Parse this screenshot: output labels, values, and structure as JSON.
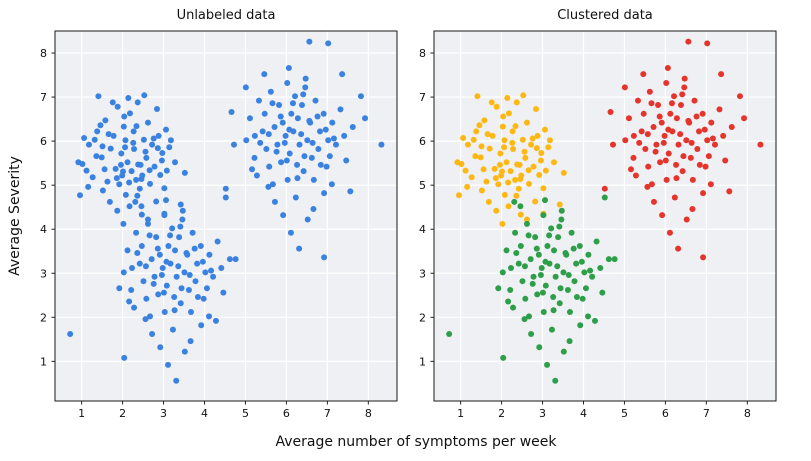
{
  "chart_data": {
    "type": "scatter",
    "panels": [
      {
        "title": "Unlabeled data",
        "mode": "single"
      },
      {
        "title": "Clustered data",
        "mode": "cluster"
      }
    ],
    "xlabel": "Average number of symptoms per week",
    "ylabel": "Average Severity",
    "xticks": [
      1,
      2,
      3,
      4,
      5,
      6,
      7,
      8
    ],
    "yticks": [
      1,
      2,
      3,
      4,
      5,
      6,
      7,
      8
    ],
    "xlim": [
      0.35,
      8.7
    ],
    "ylim": [
      0.1,
      8.5
    ],
    "grid": true,
    "legend": "none",
    "marker_radius": 3,
    "unlabeled_color": "#3b82e0",
    "plot_bg": "#eef0f4",
    "grid_color": "#ffffff",
    "spine_color": "#1a1a1a",
    "clusters": [
      {
        "name": "cluster-yellow",
        "color": "#fdb813",
        "points": [
          [
            1.02,
            5.48
          ],
          [
            1.18,
            5.92
          ],
          [
            1.27,
            5.18
          ],
          [
            1.38,
            6.22
          ],
          [
            1.52,
            4.88
          ],
          [
            1.49,
            5.63
          ],
          [
            1.58,
            6.47
          ],
          [
            1.63,
            5.08
          ],
          [
            1.71,
            5.83
          ],
          [
            1.69,
            4.62
          ],
          [
            1.78,
            6.12
          ],
          [
            1.83,
            5.37
          ],
          [
            1.88,
            6.78
          ],
          [
            1.92,
            5.02
          ],
          [
            1.87,
            4.42
          ],
          [
            1.97,
            5.72
          ],
          [
            2.03,
            6.33
          ],
          [
            1.99,
            5.22
          ],
          [
            2.08,
            4.78
          ],
          [
            2.12,
            5.52
          ],
          [
            2.07,
            6.02
          ],
          [
            2.18,
            6.63
          ],
          [
            2.22,
            5.32
          ],
          [
            2.17,
            4.52
          ],
          [
            2.28,
            5.82
          ],
          [
            2.33,
            5.12
          ],
          [
            2.27,
            6.22
          ],
          [
            2.38,
            5.47
          ],
          [
            2.42,
            4.92
          ],
          [
            2.37,
            6.88
          ],
          [
            2.48,
            5.22
          ],
          [
            2.52,
            6.03
          ],
          [
            2.47,
            4.33
          ],
          [
            2.58,
            5.62
          ],
          [
            2.62,
            6.42
          ],
          [
            2.67,
            5.03
          ],
          [
            2.72,
            5.92
          ],
          [
            2.78,
            5.42
          ],
          [
            2.82,
            4.63
          ],
          [
            2.88,
            6.12
          ],
          [
            2.92,
            5.23
          ],
          [
            2.97,
            5.73
          ],
          [
            3.02,
            4.93
          ],
          [
            3.08,
            5.33
          ],
          [
            3.18,
            6.02
          ],
          [
            3.28,
            5.52
          ],
          [
            3.52,
            5.28
          ],
          [
            1.12,
            5.33
          ],
          [
            0.92,
            5.52
          ],
          [
            1.32,
            6.03
          ],
          [
            2.02,
            4.12
          ],
          [
            2.62,
            4.22
          ],
          [
            3.02,
            4.35
          ],
          [
            2.14,
            6.98
          ],
          [
            1.76,
            6.88
          ],
          [
            2.44,
            5.46
          ],
          [
            2.06,
            5.86
          ],
          [
            1.56,
            5.36
          ],
          [
            2.36,
            4.76
          ],
          [
            2.84,
            6.73
          ],
          [
            1.16,
            4.96
          ],
          [
            1.36,
            5.66
          ],
          [
            1.46,
            6.36
          ],
          [
            1.66,
            6.16
          ],
          [
            1.86,
            5.16
          ],
          [
            1.96,
            5.46
          ],
          [
            2.04,
            6.56
          ],
          [
            2.16,
            5.06
          ],
          [
            2.26,
            5.96
          ],
          [
            2.34,
            6.34
          ],
          [
            2.46,
            5.14
          ],
          [
            2.56,
            5.76
          ],
          [
            2.66,
            5.34
          ],
          [
            2.76,
            6.06
          ],
          [
            2.86,
            5.84
          ],
          [
            2.96,
            5.56
          ],
          [
            3.06,
            6.26
          ],
          [
            3.14,
            5.86
          ],
          [
            2.01,
            5.31
          ],
          [
            1.51,
            5.88
          ],
          [
            0.96,
            4.77
          ],
          [
            1.06,
            6.07
          ],
          [
            3.42,
            4.56
          ],
          [
            1.41,
            7.02
          ],
          [
            2.53,
            7.04
          ]
        ]
      },
      {
        "name": "cluster-green",
        "color": "#2e9e49",
        "points": [
          [
            2.03,
            3.02
          ],
          [
            2.12,
            3.52
          ],
          [
            2.21,
            2.62
          ],
          [
            2.33,
            3.92
          ],
          [
            2.28,
            2.22
          ],
          [
            2.42,
            3.22
          ],
          [
            2.51,
            2.82
          ],
          [
            2.47,
            3.62
          ],
          [
            2.62,
            4.12
          ],
          [
            2.58,
            2.42
          ],
          [
            2.71,
            3.32
          ],
          [
            2.67,
            2.02
          ],
          [
            2.82,
            3.82
          ],
          [
            2.78,
            2.92
          ],
          [
            2.91,
            3.42
          ],
          [
            2.87,
            2.52
          ],
          [
            3.02,
            4.32
          ],
          [
            2.98,
            3.12
          ],
          [
            3.03,
            2.12
          ],
          [
            3.12,
            3.62
          ],
          [
            3.08,
            2.72
          ],
          [
            3.21,
            4.02
          ],
          [
            3.17,
            3.22
          ],
          [
            3.23,
            1.72
          ],
          [
            3.32,
            2.92
          ],
          [
            3.28,
            3.52
          ],
          [
            3.42,
            2.32
          ],
          [
            3.38,
            3.82
          ],
          [
            3.51,
            3.02
          ],
          [
            3.47,
            4.42
          ],
          [
            3.62,
            2.62
          ],
          [
            3.58,
            3.42
          ],
          [
            3.71,
            3.92
          ],
          [
            3.67,
            2.12
          ],
          [
            3.82,
            3.22
          ],
          [
            3.78,
            2.82
          ],
          [
            3.91,
            3.62
          ],
          [
            4.02,
            3.02
          ],
          [
            3.98,
            2.42
          ],
          [
            4.12,
            3.42
          ],
          [
            4.21,
            2.92
          ],
          [
            4.32,
            3.72
          ],
          [
            4.41,
            3.12
          ],
          [
            4.62,
            3.32
          ],
          [
            2.23,
            3.12
          ],
          [
            2.46,
            4.52
          ],
          [
            2.92,
            1.32
          ],
          [
            3.11,
            0.92
          ],
          [
            3.31,
            0.56
          ],
          [
            3.52,
            1.22
          ],
          [
            2.72,
            1.62
          ],
          [
            3.92,
            1.82
          ],
          [
            4.11,
            2.02
          ],
          [
            3.06,
            4.66
          ],
          [
            3.46,
            4.22
          ],
          [
            2.16,
            2.36
          ],
          [
            4.46,
            2.56
          ],
          [
            3.66,
            1.46
          ],
          [
            2.56,
            1.96
          ],
          [
            3.26,
            2.46
          ],
          [
            2.36,
            3.46
          ],
          [
            2.57,
            3.16
          ],
          [
            2.76,
            2.76
          ],
          [
            2.86,
            3.56
          ],
          [
            2.96,
            2.96
          ],
          [
            3.07,
            3.26
          ],
          [
            3.16,
            3.86
          ],
          [
            3.27,
            2.16
          ],
          [
            3.36,
            3.16
          ],
          [
            3.44,
            2.66
          ],
          [
            3.56,
            3.46
          ],
          [
            3.64,
            2.96
          ],
          [
            3.76,
            3.56
          ],
          [
            3.84,
            2.46
          ],
          [
            3.96,
            3.26
          ],
          [
            4.06,
            2.66
          ],
          [
            4.16,
            3.06
          ],
          [
            2.66,
            3.86
          ],
          [
            3.01,
            2.56
          ],
          [
            3.41,
            4.06
          ],
          [
            0.72,
            1.62
          ],
          [
            4.76,
            3.32
          ],
          [
            2.04,
            1.08
          ],
          [
            4.28,
            1.92
          ],
          [
            2.31,
            4.62
          ],
          [
            1.92,
            2.66
          ],
          [
            4.52,
            4.72
          ]
        ]
      },
      {
        "name": "cluster-red",
        "color": "#e5342b",
        "points": [
          [
            5.02,
            6.02
          ],
          [
            5.11,
            6.52
          ],
          [
            5.22,
            5.62
          ],
          [
            5.33,
            6.92
          ],
          [
            5.28,
            5.22
          ],
          [
            5.42,
            6.22
          ],
          [
            5.51,
            5.82
          ],
          [
            5.47,
            6.62
          ],
          [
            5.62,
            7.12
          ],
          [
            5.58,
            5.42
          ],
          [
            5.71,
            6.32
          ],
          [
            5.67,
            5.02
          ],
          [
            5.82,
            6.82
          ],
          [
            5.78,
            5.92
          ],
          [
            5.91,
            6.42
          ],
          [
            5.87,
            5.52
          ],
          [
            6.02,
            7.32
          ],
          [
            5.98,
            6.12
          ],
          [
            6.03,
            5.12
          ],
          [
            6.12,
            6.62
          ],
          [
            6.08,
            5.72
          ],
          [
            6.21,
            7.02
          ],
          [
            6.17,
            6.22
          ],
          [
            6.23,
            4.72
          ],
          [
            6.32,
            5.92
          ],
          [
            6.28,
            6.52
          ],
          [
            6.42,
            5.32
          ],
          [
            6.38,
            6.82
          ],
          [
            6.51,
            6.02
          ],
          [
            6.47,
            7.42
          ],
          [
            6.62,
            5.62
          ],
          [
            6.58,
            6.42
          ],
          [
            6.71,
            6.92
          ],
          [
            6.67,
            5.12
          ],
          [
            6.82,
            6.22
          ],
          [
            6.78,
            5.82
          ],
          [
            6.91,
            6.62
          ],
          [
            7.02,
            6.02
          ],
          [
            6.98,
            5.42
          ],
          [
            7.12,
            6.42
          ],
          [
            7.21,
            5.92
          ],
          [
            7.32,
            6.72
          ],
          [
            7.41,
            6.12
          ],
          [
            7.62,
            6.32
          ],
          [
            5.23,
            6.12
          ],
          [
            5.46,
            7.52
          ],
          [
            5.92,
            4.32
          ],
          [
            6.11,
            3.92
          ],
          [
            6.31,
            3.56
          ],
          [
            6.52,
            4.22
          ],
          [
            5.72,
            4.62
          ],
          [
            6.92,
            4.82
          ],
          [
            7.11,
            5.02
          ],
          [
            6.06,
            7.66
          ],
          [
            6.46,
            7.22
          ],
          [
            5.16,
            5.36
          ],
          [
            7.46,
            5.56
          ],
          [
            6.66,
            4.46
          ],
          [
            5.56,
            4.96
          ],
          [
            6.26,
            5.46
          ],
          [
            5.36,
            5.96
          ],
          [
            5.57,
            6.16
          ],
          [
            5.76,
            5.76
          ],
          [
            5.86,
            6.56
          ],
          [
            5.96,
            5.96
          ],
          [
            6.07,
            6.26
          ],
          [
            6.16,
            6.86
          ],
          [
            6.27,
            5.16
          ],
          [
            6.36,
            6.16
          ],
          [
            6.44,
            5.66
          ],
          [
            6.56,
            6.46
          ],
          [
            6.64,
            5.96
          ],
          [
            6.76,
            6.56
          ],
          [
            6.84,
            5.46
          ],
          [
            6.96,
            6.26
          ],
          [
            7.06,
            5.66
          ],
          [
            7.16,
            6.06
          ],
          [
            5.66,
            6.86
          ],
          [
            6.01,
            5.56
          ],
          [
            6.41,
            7.06
          ],
          [
            8.32,
            5.92
          ],
          [
            7.02,
            8.22
          ],
          [
            6.56,
            8.26
          ],
          [
            4.52,
            4.92
          ],
          [
            6.92,
            3.36
          ],
          [
            5.01,
            7.22
          ],
          [
            4.72,
            5.92
          ],
          [
            7.82,
            7.02
          ],
          [
            7.92,
            6.52
          ],
          [
            7.36,
            7.52
          ],
          [
            4.66,
            6.66
          ],
          [
            7.56,
            4.86
          ]
        ]
      }
    ]
  }
}
